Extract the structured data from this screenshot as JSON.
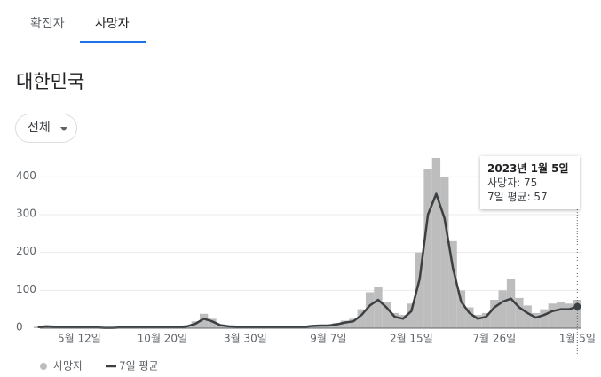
{
  "tabs": [
    "확진자",
    "사망자"
  ],
  "region": "대한민국",
  "filter": "전체",
  "tooltip": {
    "title": "2023년 1월 5일",
    "lines": [
      "사망자: 75",
      "7일 평균: 57"
    ]
  },
  "chart_data": {
    "type": "bar",
    "categories": [
      null,
      null,
      null,
      null,
      null,
      "5월 12일",
      null,
      null,
      null,
      null,
      null,
      null,
      null,
      null,
      null,
      "10월 20일",
      null,
      null,
      null,
      null,
      null,
      null,
      null,
      null,
      null,
      "3월 30일",
      null,
      null,
      null,
      null,
      null,
      null,
      null,
      null,
      null,
      "9월 7일",
      null,
      null,
      null,
      null,
      null,
      null,
      null,
      null,
      null,
      "2월 15일",
      null,
      null,
      null,
      null,
      null,
      null,
      null,
      null,
      null,
      "7월 26일",
      null,
      null,
      null,
      null,
      null,
      null,
      null,
      null,
      null,
      "1월 5일"
    ],
    "series": [
      {
        "name": "사망자",
        "type": "bar",
        "color": "#bdbdbd",
        "values": [
          4,
          7,
          5,
          3,
          3,
          2,
          3,
          2,
          1,
          2,
          2,
          3,
          2,
          2,
          3,
          2,
          4,
          4,
          8,
          18,
          38,
          25,
          10,
          6,
          5,
          4,
          4,
          3,
          3,
          4,
          3,
          2,
          4,
          8,
          9,
          8,
          14,
          20,
          25,
          50,
          95,
          108,
          70,
          40,
          35,
          65,
          200,
          420,
          450,
          400,
          230,
          100,
          55,
          35,
          40,
          75,
          100,
          130,
          80,
          60,
          40,
          50,
          65,
          70,
          65,
          75
        ]
      },
      {
        "name": "7일 평균",
        "type": "line",
        "color": "#3c4043",
        "values": [
          3,
          5,
          4,
          3,
          2,
          2,
          2,
          2,
          1,
          1,
          2,
          2,
          2,
          2,
          2,
          2,
          3,
          3,
          5,
          12,
          25,
          18,
          8,
          5,
          4,
          4,
          3,
          3,
          3,
          3,
          2,
          2,
          3,
          6,
          7,
          7,
          10,
          15,
          18,
          35,
          60,
          75,
          55,
          30,
          25,
          45,
          130,
          300,
          355,
          290,
          160,
          70,
          40,
          25,
          30,
          55,
          70,
          78,
          55,
          40,
          28,
          35,
          45,
          50,
          50,
          57
        ]
      }
    ],
    "ylim": [
      0,
      450
    ],
    "yticks": [
      0,
      100,
      200,
      300,
      400
    ],
    "grid": true
  }
}
